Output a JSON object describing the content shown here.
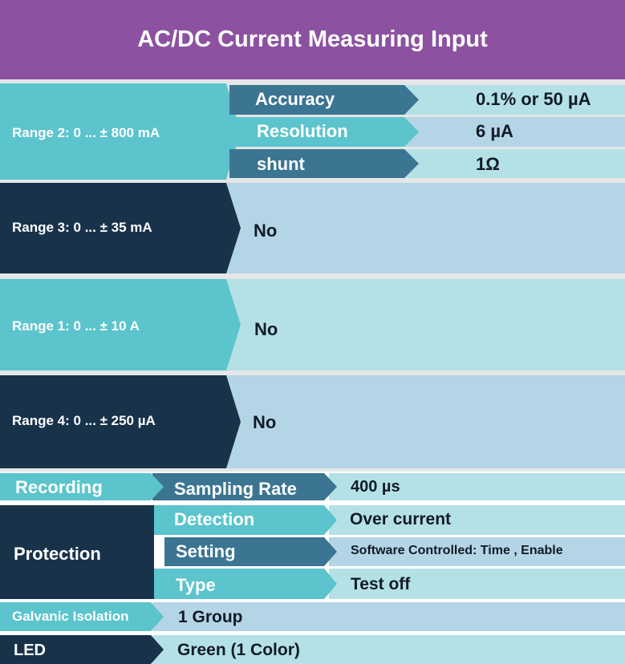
{
  "title": "AC/DC Current Measuring Input",
  "ranges": [
    {
      "label": "Range 2: 0 ... ± 800 mA",
      "params": [
        {
          "name": "Accuracy",
          "value": "0.1% or 50 µA"
        },
        {
          "name": "Resolution",
          "value": "6 µA"
        },
        {
          "name": "shunt",
          "value": "1Ω"
        }
      ]
    },
    {
      "label": "Range 3: 0 ... ± 35 mA",
      "value": "No"
    },
    {
      "label": "Range 1: 0 ... ± 10 A",
      "value": "No"
    },
    {
      "label": "Range 4: 0 ... ± 250 µA",
      "value": "No"
    }
  ],
  "recording": {
    "label": "Recording",
    "param": "Sampling Rate",
    "value": "400 µs"
  },
  "protection": {
    "label": "Protection",
    "rows": [
      {
        "name": "Detection",
        "value": "Over current"
      },
      {
        "name": "Setting",
        "value": "Software Controlled: Time , Enable"
      },
      {
        "name": "Type",
        "value": "Test off"
      }
    ]
  },
  "galvanic": {
    "label": "Galvanic Isolation",
    "value": "1 Group"
  },
  "led": {
    "label": "LED",
    "value": "Green (1 Color)"
  },
  "colors": {
    "header_purple": "#8c52a1",
    "teal": "#5bc4cc",
    "navy": "#18324a",
    "steel_blue": "#3b7592",
    "light_teal": "#b4e1e6",
    "light_blue": "#b4d5e6"
  }
}
